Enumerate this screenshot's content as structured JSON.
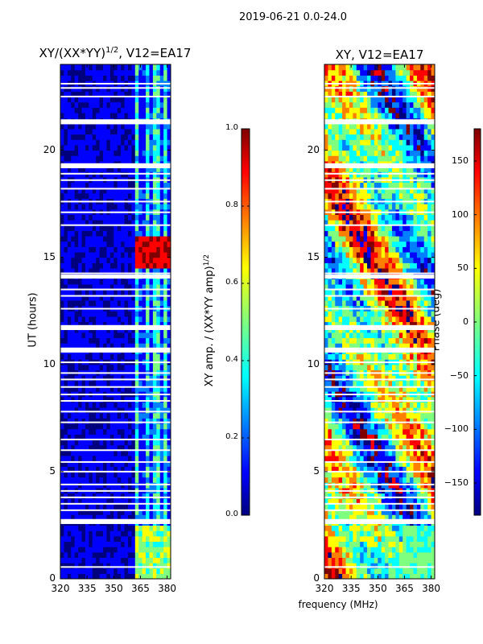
{
  "suptitle": "2019-06-21 0.0-24.0",
  "colors": {
    "jet": [
      "#00007f",
      "#0000ff",
      "#007fff",
      "#00ffff",
      "#7fff7f",
      "#ffff00",
      "#ff7f00",
      "#ff0000",
      "#7f0000"
    ]
  },
  "chart_data": [
    {
      "type": "heatmap",
      "title_main": "XY/(XX*YY)",
      "title_sup": "1/2",
      "title_rest": ", V12=EA17",
      "xlabel": "",
      "ylabel": "UT (hours)",
      "x_range": [
        320,
        382
      ],
      "y_range": [
        0,
        24
      ],
      "x_ticks": [
        320,
        335,
        350,
        365,
        380
      ],
      "y_ticks": [
        0,
        5,
        10,
        15,
        20
      ],
      "colorbar": {
        "label_main": "XY amp. / (XX*YY amp)",
        "label_sup": "1/2",
        "range": [
          0.0,
          1.0
        ],
        "ticks": [
          "0.0",
          "0.2",
          "0.4",
          "0.6",
          "0.8",
          "1.0"
        ]
      },
      "description": "normalized cross-correlation amplitude vs frequency and time; high values (~0.5-1.0) near 362-382 MHz, strongest ~15-16 UT"
    },
    {
      "type": "heatmap",
      "title": "XY, V12=EA17",
      "xlabel": "frequency (MHz)",
      "ylabel": "",
      "x_range": [
        320,
        382
      ],
      "y_range": [
        0,
        24
      ],
      "x_ticks": [
        320,
        335,
        350,
        365,
        380
      ],
      "y_ticks": [
        0,
        5,
        10,
        15,
        20
      ],
      "colorbar": {
        "label": "Phase (deg)",
        "range": [
          -180,
          180
        ],
        "ticks": [
          "−150",
          "−100",
          "−50",
          "0",
          "50",
          "100",
          "150"
        ]
      },
      "description": "cross-correlation phase vs frequency and time, wrapping across -180 to 180 degrees"
    }
  ]
}
